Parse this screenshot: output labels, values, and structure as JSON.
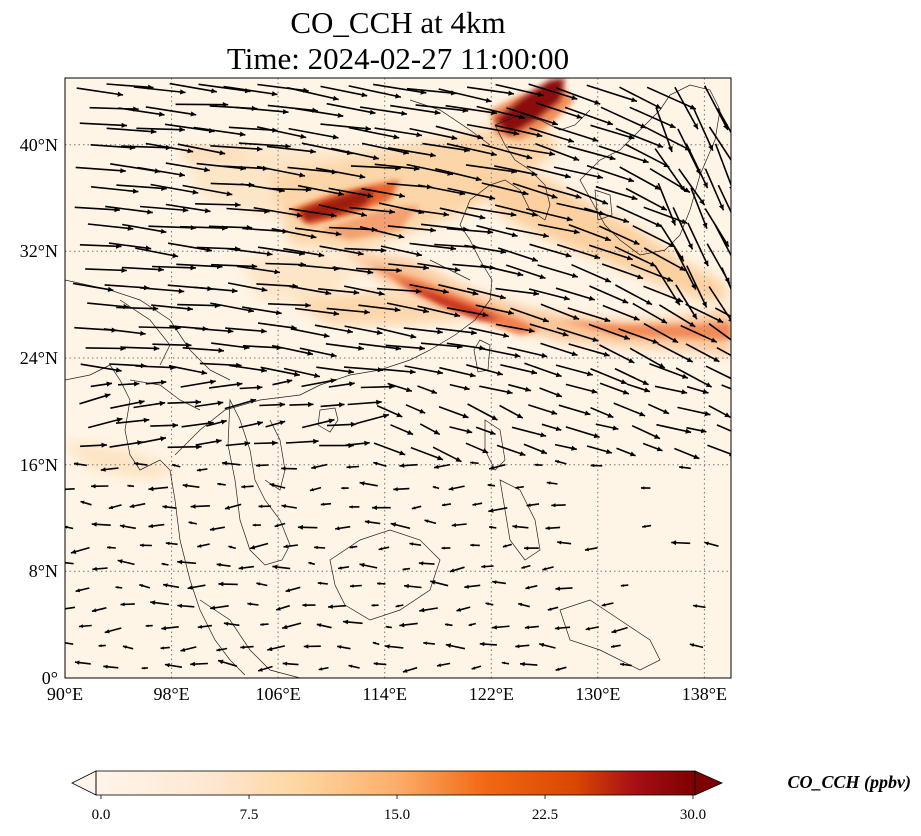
{
  "title": {
    "line1": "CO_CCH at 4km",
    "line2": "Time: 2024-02-27 11:00:00"
  },
  "map": {
    "variable": "CO_CCH",
    "level": "4km",
    "lon_range": [
      90,
      140
    ],
    "lat_range": [
      0,
      45
    ],
    "x_ticks": [
      "90°E",
      "98°E",
      "106°E",
      "114°E",
      "122°E",
      "130°E",
      "138°E"
    ],
    "y_ticks": [
      "0°",
      "8°N",
      "16°N",
      "24°N",
      "32°N",
      "40°N"
    ],
    "gridlines": "dotted",
    "background_color": "#fff5e6",
    "plumes": [
      {
        "name": "northeast-china-plume",
        "lon": [
          121.5,
          127
        ],
        "lat": [
          39.5,
          45
        ],
        "max_value": 30
      },
      {
        "name": "central-china-plume",
        "lon": [
          107,
          113
        ],
        "lat": [
          34.5,
          37
        ],
        "max_value": 28
      },
      {
        "name": "east-china-sea-band",
        "lon": [
          112,
          140
        ],
        "lat": [
          24,
          31
        ],
        "max_value": 25
      },
      {
        "name": "yellow-sea-band",
        "lon": [
          113,
          130
        ],
        "lat": [
          30,
          40
        ],
        "max_value": 12
      }
    ]
  },
  "colorbar": {
    "label": "CO_CCH (ppbv)",
    "min": 0.0,
    "max": 30.0,
    "ticks": [
      "0.0",
      "7.5",
      "15.0",
      "22.5",
      "30.0"
    ],
    "colors": [
      "#fff5eb",
      "#fdd49e",
      "#fdae6b",
      "#f16913",
      "#d94801",
      "#a50f15",
      "#7f0000"
    ],
    "extend": "both"
  }
}
